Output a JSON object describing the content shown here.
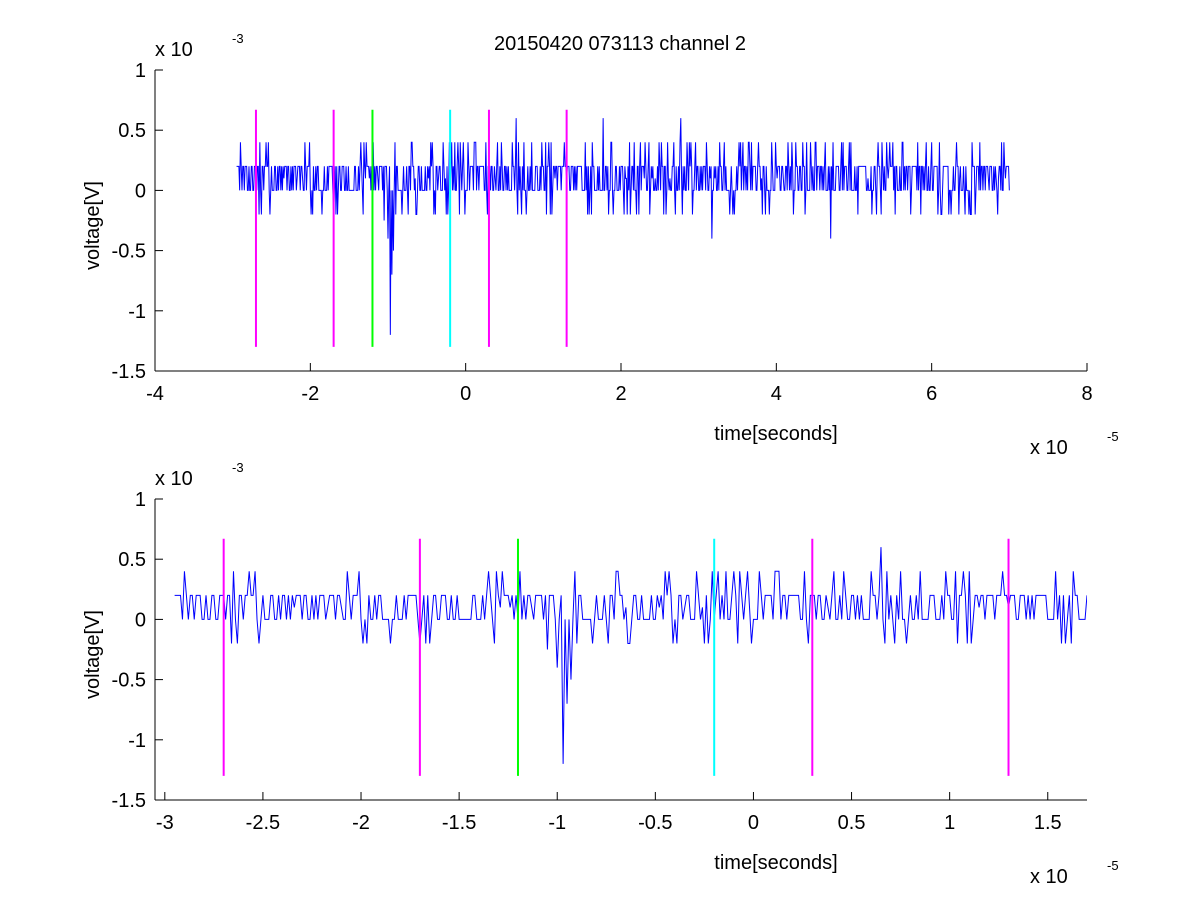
{
  "figure": {
    "title": "20150420 073113 channel 2"
  },
  "chart_data": [
    {
      "type": "line",
      "xlabel": "time[seconds]",
      "ylabel": "voltage[V]",
      "x_exponent": "x 10",
      "x_exponent_power": "-5",
      "y_exponent": "x 10",
      "y_exponent_power": "-3",
      "xlim": [
        -4,
        8
      ],
      "ylim": [
        -1.5,
        1
      ],
      "x_ticks": [
        -4,
        -2,
        0,
        2,
        4,
        6,
        8
      ],
      "x_tick_labels": [
        "-4",
        "-2",
        "0",
        "2",
        "4",
        "6",
        "8"
      ],
      "y_ticks": [
        -1.5,
        -1,
        -0.5,
        0,
        0.5,
        1
      ],
      "y_tick_labels": [
        "-1.5",
        "-1",
        "-0.5",
        "0",
        "0.5",
        "1"
      ],
      "grid": false,
      "trace": {
        "color": "#0000ff",
        "x_range": [
          -2.95,
          7.0
        ],
        "step": 0.01,
        "baseline_levels": [
          0,
          0.2
        ],
        "seed": 11
      },
      "spikes": [
        {
          "x": -1.05,
          "y": -0.25
        },
        {
          "x": -1.0,
          "y": -0.4
        },
        {
          "x": -0.97,
          "y": -1.2
        },
        {
          "x": -0.95,
          "y": -0.7
        },
        {
          "x": -0.93,
          "y": -0.5
        },
        {
          "x": -0.9,
          "y": -0.2
        },
        {
          "x": -2.65,
          "y": 0.4
        },
        {
          "x": 0.65,
          "y": 0.6
        },
        {
          "x": 1.77,
          "y": 0.6
        },
        {
          "x": 2.77,
          "y": 0.6
        },
        {
          "x": 3.17,
          "y": -0.4
        },
        {
          "x": 4.7,
          "y": -0.4
        },
        {
          "x": 5.5,
          "y": 0.4
        },
        {
          "x": 6.9,
          "y": 0.4
        }
      ],
      "markers": [
        {
          "x": -2.7,
          "y_range": [
            -1.3,
            0.67
          ],
          "color": "#ff00ff"
        },
        {
          "x": -1.7,
          "y_range": [
            -1.3,
            0.67
          ],
          "color": "#ff00ff"
        },
        {
          "x": -1.2,
          "y_range": [
            -1.3,
            0.67
          ],
          "color": "#00ff00"
        },
        {
          "x": -0.2,
          "y_range": [
            -1.3,
            0.67
          ],
          "color": "#00ffff"
        },
        {
          "x": 0.3,
          "y_range": [
            -1.3,
            0.67
          ],
          "color": "#ff00ff"
        },
        {
          "x": 1.3,
          "y_range": [
            -1.3,
            0.67
          ],
          "color": "#ff00ff"
        }
      ]
    },
    {
      "type": "line",
      "xlabel": "time[seconds]",
      "ylabel": "voltage[V]",
      "x_exponent": "x 10",
      "x_exponent_power": "-5",
      "y_exponent": "x 10",
      "y_exponent_power": "-3",
      "xlim": [
        -3.05,
        1.7
      ],
      "ylim": [
        -1.5,
        1
      ],
      "x_ticks": [
        -3,
        -2.5,
        -2,
        -1.5,
        -1,
        -0.5,
        0,
        0.5,
        1,
        1.5
      ],
      "x_tick_labels": [
        "-3",
        "-2.5",
        "-2",
        "-1.5",
        "-1",
        "-0.5",
        "0",
        "0.5",
        "1",
        "1.5"
      ],
      "y_ticks": [
        -1.5,
        -1,
        -0.5,
        0,
        0.5,
        1
      ],
      "y_tick_labels": [
        "-1.5",
        "-1",
        "-0.5",
        "0",
        "0.5",
        "1"
      ],
      "grid": false,
      "trace": {
        "color": "#0000ff",
        "x_range": [
          -2.95,
          1.7
        ],
        "step": 0.01,
        "baseline_levels": [
          0,
          0.2
        ],
        "seed": 11
      },
      "spikes": [
        {
          "x": -1.05,
          "y": -0.25
        },
        {
          "x": -1.0,
          "y": -0.4
        },
        {
          "x": -0.97,
          "y": -1.2
        },
        {
          "x": -0.95,
          "y": -0.7
        },
        {
          "x": -0.93,
          "y": -0.5
        },
        {
          "x": -0.9,
          "y": -0.2
        },
        {
          "x": -2.65,
          "y": 0.4
        },
        {
          "x": 0.65,
          "y": 0.6
        }
      ],
      "markers": [
        {
          "x": -2.7,
          "y_range": [
            -1.3,
            0.67
          ],
          "color": "#ff00ff"
        },
        {
          "x": -1.7,
          "y_range": [
            -1.3,
            0.67
          ],
          "color": "#ff00ff"
        },
        {
          "x": -1.2,
          "y_range": [
            -1.3,
            0.67
          ],
          "color": "#00ff00"
        },
        {
          "x": -0.2,
          "y_range": [
            -1.3,
            0.67
          ],
          "color": "#00ffff"
        },
        {
          "x": 0.3,
          "y_range": [
            -1.3,
            0.67
          ],
          "color": "#ff00ff"
        },
        {
          "x": 1.3,
          "y_range": [
            -1.3,
            0.67
          ],
          "color": "#ff00ff"
        }
      ]
    }
  ]
}
